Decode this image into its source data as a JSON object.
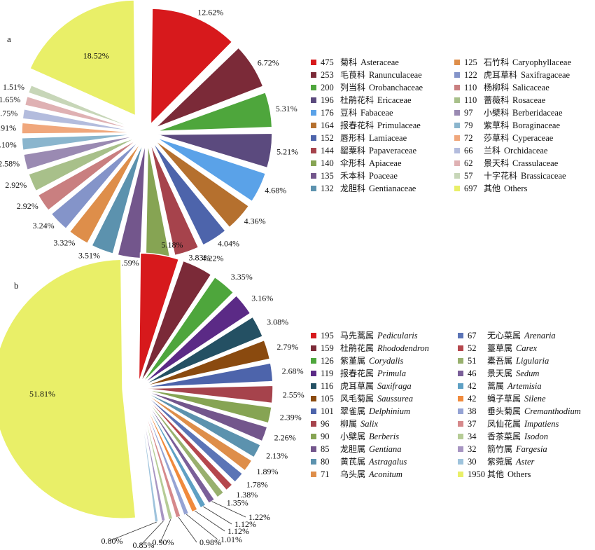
{
  "chart_data": [
    {
      "type": "pie",
      "panel": "a",
      "series": [
        {
          "count": 475,
          "zh": "菊科",
          "name": "Asteraceae",
          "value": 12.62,
          "color": "#d7191c"
        },
        {
          "count": 253,
          "zh": "毛茛科",
          "name": "Ranunculaceae",
          "value": 6.72,
          "color": "#7b2a38"
        },
        {
          "count": 200,
          "zh": "列当科",
          "name": "Orobanchaceae",
          "value": 5.31,
          "color": "#4ea63c"
        },
        {
          "count": 196,
          "zh": "杜鹃花科",
          "name": "Ericaceae",
          "value": 5.21,
          "color": "#5b4a7e"
        },
        {
          "count": 176,
          "zh": "豆科",
          "name": "Fabaceae",
          "value": 4.68,
          "color": "#5aa2e8"
        },
        {
          "count": 164,
          "zh": "报春花科",
          "name": "Primulaceae",
          "value": 4.36,
          "color": "#b5702e"
        },
        {
          "count": 152,
          "zh": "唇形科",
          "name": "Lamiaceae",
          "value": 4.04,
          "color": "#4d64ab"
        },
        {
          "count": 144,
          "zh": "罂粟科",
          "name": "Papaveraceae",
          "value": 3.83,
          "color": "#a6434c"
        },
        {
          "count": 140,
          "zh": "伞形科",
          "name": "Apiaceae",
          "value": 3.72,
          "color": "#86a453"
        },
        {
          "count": 135,
          "zh": "禾本科",
          "name": "Poaceae",
          "value": 3.59,
          "color": "#73568c"
        },
        {
          "count": 132,
          "zh": "龙胆科",
          "name": "Gentianaceae",
          "value": 3.51,
          "color": "#5c92ae"
        },
        {
          "count": 125,
          "zh": "石竹科",
          "name": "Caryophyllaceae",
          "value": 3.32,
          "color": "#de8e4a"
        },
        {
          "count": 122,
          "zh": "虎耳草科",
          "name": "Saxifragaceae",
          "value": 3.24,
          "color": "#8494c9"
        },
        {
          "count": 110,
          "zh": "杨柳科",
          "name": "Salicaceae",
          "value": 2.92,
          "color": "#c97f80"
        },
        {
          "count": 110,
          "zh": "蔷薇科",
          "name": "Rosaceae",
          "value": 2.92,
          "color": "#a8c08a"
        },
        {
          "count": 97,
          "zh": "小檗科",
          "name": "Berberidaceae",
          "value": 2.58,
          "color": "#9a8ab2"
        },
        {
          "count": 79,
          "zh": "紫草科",
          "name": "Boraginaceae",
          "value": 2.1,
          "color": "#8ab5cd"
        },
        {
          "count": 72,
          "zh": "莎草科",
          "name": "Cyperaceae",
          "value": 1.91,
          "color": "#f0a77c"
        },
        {
          "count": 66,
          "zh": "兰科",
          "name": "Orchidaceae",
          "value": 1.75,
          "color": "#b3bcdd"
        },
        {
          "count": 62,
          "zh": "景天科",
          "name": "Crassulaceae",
          "value": 1.65,
          "color": "#dfb1b3"
        },
        {
          "count": 57,
          "zh": "十字花科",
          "name": "Brassicaceae",
          "value": 1.51,
          "color": "#c7d6b8"
        },
        {
          "count": 697,
          "zh": "其他",
          "name": "Others",
          "value": 18.52,
          "color": "#e9ef68"
        }
      ]
    },
    {
      "type": "pie",
      "panel": "b",
      "series": [
        {
          "count": 195,
          "zh": "马先蒿属",
          "name": "Pedicularis",
          "value": 5.18,
          "color": "#d7191c"
        },
        {
          "count": 159,
          "zh": "杜鹃花属",
          "name": "Rhododendron",
          "value": 4.22,
          "color": "#7b2a38"
        },
        {
          "count": 126,
          "zh": "紫堇属",
          "name": "Corydalis",
          "value": 3.35,
          "color": "#4ea63c"
        },
        {
          "count": 119,
          "zh": "报春花属",
          "name": "Primula",
          "value": 3.16,
          "color": "#5b2a86"
        },
        {
          "count": 116,
          "zh": "虎耳草属",
          "name": "Saxifraga",
          "value": 3.08,
          "color": "#245063"
        },
        {
          "count": 105,
          "zh": "风毛菊属",
          "name": "Saussurea",
          "value": 2.79,
          "color": "#8a4a0f"
        },
        {
          "count": 101,
          "zh": "翠雀属",
          "name": "Delphinium",
          "value": 2.68,
          "color": "#4d64ab"
        },
        {
          "count": 96,
          "zh": "柳属",
          "name": "Salix",
          "value": 2.55,
          "color": "#a6434c"
        },
        {
          "count": 90,
          "zh": "小檗属",
          "name": "Berberis",
          "value": 2.39,
          "color": "#86a453"
        },
        {
          "count": 85,
          "zh": "龙胆属",
          "name": "Gentiana",
          "value": 2.26,
          "color": "#73568c"
        },
        {
          "count": 80,
          "zh": "黄芪属",
          "name": "Astragalus",
          "value": 2.13,
          "color": "#5c92ae"
        },
        {
          "count": 71,
          "zh": "乌头属",
          "name": "Aconitum",
          "value": 1.89,
          "color": "#de8e4a"
        },
        {
          "count": 67,
          "zh": "无心菜属",
          "name": "Arenaria",
          "value": 1.78,
          "color": "#5b74b6"
        },
        {
          "count": 52,
          "zh": "薹草属",
          "name": "Carex",
          "value": 1.38,
          "color": "#b5474d"
        },
        {
          "count": 51,
          "zh": "橐吾属",
          "name": "Ligularia",
          "value": 1.35,
          "color": "#98b06e"
        },
        {
          "count": 46,
          "zh": "景天属",
          "name": "Sedum",
          "value": 1.22,
          "color": "#7a5f99"
        },
        {
          "count": 42,
          "zh": "蒿属",
          "name": "Artemisia",
          "value": 1.12,
          "color": "#5ea0c4"
        },
        {
          "count": 42,
          "zh": "蝇子草属",
          "name": "Silene",
          "value": 1.12,
          "color": "#f08a3c"
        },
        {
          "count": 38,
          "zh": "垂头菊属",
          "name": "Cremanthodium",
          "value": 1.01,
          "color": "#95a3d4"
        },
        {
          "count": 37,
          "zh": "凤仙花属",
          "name": "Impatiens",
          "value": 0.98,
          "color": "#d6898b"
        },
        {
          "count": 34,
          "zh": "香茶菜属",
          "name": "Isodon",
          "value": 0.9,
          "color": "#b6cc96"
        },
        {
          "count": 32,
          "zh": "箭竹属",
          "name": "Fargesia",
          "value": 0.85,
          "color": "#a795c2"
        },
        {
          "count": 30,
          "zh": "紫菀属",
          "name": "Aster",
          "value": 0.8,
          "color": "#9ec3dc"
        },
        {
          "count": 1950,
          "zh": "其他",
          "name": "Others",
          "value": 51.81,
          "color": "#e9ef68"
        }
      ]
    }
  ]
}
